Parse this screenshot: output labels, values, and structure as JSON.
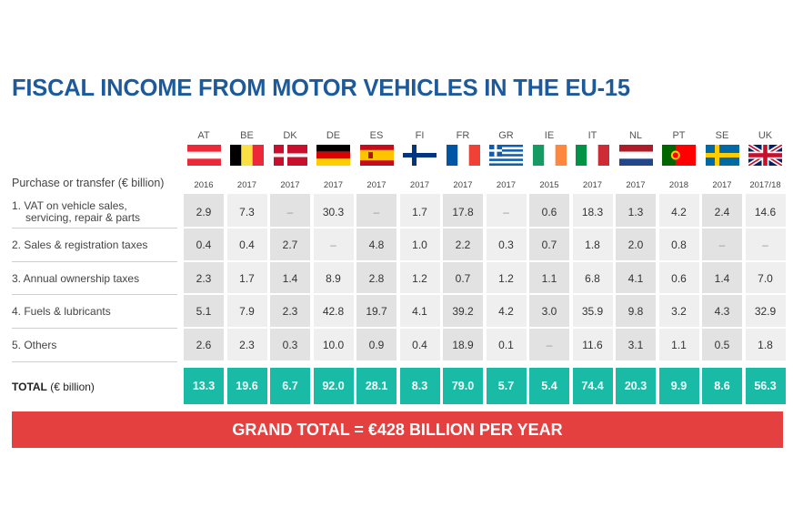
{
  "title": "FISCAL INCOME FROM MOTOR VEHICLES IN THE EU-15",
  "purchase_label": "Purchase or transfer (€ billion)",
  "rows": [
    {
      "label_lines": [
        "1. VAT on vehicle sales,",
        "servicing, repair & parts"
      ]
    },
    {
      "label_lines": [
        "2. Sales & registration taxes"
      ]
    },
    {
      "label_lines": [
        "3. Annual ownership taxes"
      ]
    },
    {
      "label_lines": [
        "4. Fuels & lubricants"
      ]
    },
    {
      "label_lines": [
        "5. Others"
      ]
    }
  ],
  "total_label": {
    "bold": "TOTAL",
    "rest": " (€ billion)"
  },
  "grand_total": "GRAND TOTAL = €428 BILLION PER YEAR",
  "countries": [
    {
      "code": "AT",
      "year": "2016",
      "values": [
        "2.9",
        "0.4",
        "2.3",
        "5.1",
        "2.6"
      ],
      "total": "13.3"
    },
    {
      "code": "BE",
      "year": "2017",
      "values": [
        "7.3",
        "0.4",
        "1.7",
        "7.9",
        "2.3"
      ],
      "total": "19.6"
    },
    {
      "code": "DK",
      "year": "2017",
      "values": [
        "–",
        "2.7",
        "1.4",
        "2.3",
        "0.3"
      ],
      "total": "6.7"
    },
    {
      "code": "DE",
      "year": "2017",
      "values": [
        "30.3",
        "–",
        "8.9",
        "42.8",
        "10.0"
      ],
      "total": "92.0"
    },
    {
      "code": "ES",
      "year": "2017",
      "values": [
        "–",
        "4.8",
        "2.8",
        "19.7",
        "0.9"
      ],
      "total": "28.1"
    },
    {
      "code": "FI",
      "year": "2017",
      "values": [
        "1.7",
        "1.0",
        "1.2",
        "4.1",
        "0.4"
      ],
      "total": "8.3"
    },
    {
      "code": "FR",
      "year": "2017",
      "values": [
        "17.8",
        "2.2",
        "0.7",
        "39.2",
        "18.9"
      ],
      "total": "79.0"
    },
    {
      "code": "GR",
      "year": "2017",
      "values": [
        "–",
        "0.3",
        "1.2",
        "4.2",
        "0.1"
      ],
      "total": "5.7"
    },
    {
      "code": "IE",
      "year": "2015",
      "values": [
        "0.6",
        "0.7",
        "1.1",
        "3.0",
        "–"
      ],
      "total": "5.4"
    },
    {
      "code": "IT",
      "year": "2017",
      "values": [
        "18.3",
        "1.8",
        "6.8",
        "35.9",
        "11.6"
      ],
      "total": "74.4"
    },
    {
      "code": "NL",
      "year": "2017",
      "values": [
        "1.3",
        "2.0",
        "4.1",
        "9.8",
        "3.1"
      ],
      "total": "20.3"
    },
    {
      "code": "PT",
      "year": "2018",
      "values": [
        "4.2",
        "0.8",
        "0.6",
        "3.2",
        "1.1"
      ],
      "total": "9.9"
    },
    {
      "code": "SE",
      "year": "2017",
      "values": [
        "2.4",
        "–",
        "1.4",
        "4.3",
        "0.5"
      ],
      "total": "8.6"
    },
    {
      "code": "UK",
      "year": "2017/18",
      "values": [
        "14.6",
        "–",
        "7.0",
        "32.9",
        "1.8"
      ],
      "total": "56.3"
    }
  ],
  "colors": {
    "title": "#1c5a9c",
    "total_cells": "#19bba6",
    "grand_total_bar": "#e54040"
  },
  "chart_data": {
    "type": "table",
    "title": "FISCAL INCOME FROM MOTOR VEHICLES IN THE EU-15",
    "columns": [
      "AT",
      "BE",
      "DK",
      "DE",
      "ES",
      "FI",
      "FR",
      "GR",
      "IE",
      "IT",
      "NL",
      "PT",
      "SE",
      "UK"
    ],
    "years": [
      "2016",
      "2017",
      "2017",
      "2017",
      "2017",
      "2017",
      "2017",
      "2017",
      "2015",
      "2017",
      "2017",
      "2018",
      "2017",
      "2017/18"
    ],
    "series": [
      {
        "name": "1. VAT on vehicle sales, servicing, repair & parts",
        "values": [
          2.9,
          7.3,
          null,
          30.3,
          null,
          1.7,
          17.8,
          null,
          0.6,
          18.3,
          1.3,
          4.2,
          2.4,
          14.6
        ]
      },
      {
        "name": "2. Sales & registration taxes",
        "values": [
          0.4,
          0.4,
          2.7,
          null,
          4.8,
          1.0,
          2.2,
          0.3,
          0.7,
          1.8,
          2.0,
          0.8,
          null,
          null
        ]
      },
      {
        "name": "3. Annual ownership taxes",
        "values": [
          2.3,
          1.7,
          1.4,
          8.9,
          2.8,
          1.2,
          0.7,
          1.2,
          1.1,
          6.8,
          4.1,
          0.6,
          1.4,
          7.0
        ]
      },
      {
        "name": "4. Fuels & lubricants",
        "values": [
          5.1,
          7.9,
          2.3,
          42.8,
          19.7,
          4.1,
          39.2,
          4.2,
          3.0,
          35.9,
          9.8,
          3.2,
          4.3,
          32.9
        ]
      },
      {
        "name": "5. Others",
        "values": [
          2.6,
          2.3,
          0.3,
          10.0,
          0.9,
          0.4,
          18.9,
          0.1,
          null,
          11.6,
          3.1,
          1.1,
          0.5,
          1.8
        ]
      },
      {
        "name": "TOTAL (€ billion)",
        "values": [
          13.3,
          19.6,
          6.7,
          92.0,
          28.1,
          8.3,
          79.0,
          5.7,
          5.4,
          74.4,
          20.3,
          9.9,
          8.6,
          56.3
        ]
      }
    ],
    "annotation": "GRAND TOTAL = €428 BILLION PER YEAR"
  }
}
